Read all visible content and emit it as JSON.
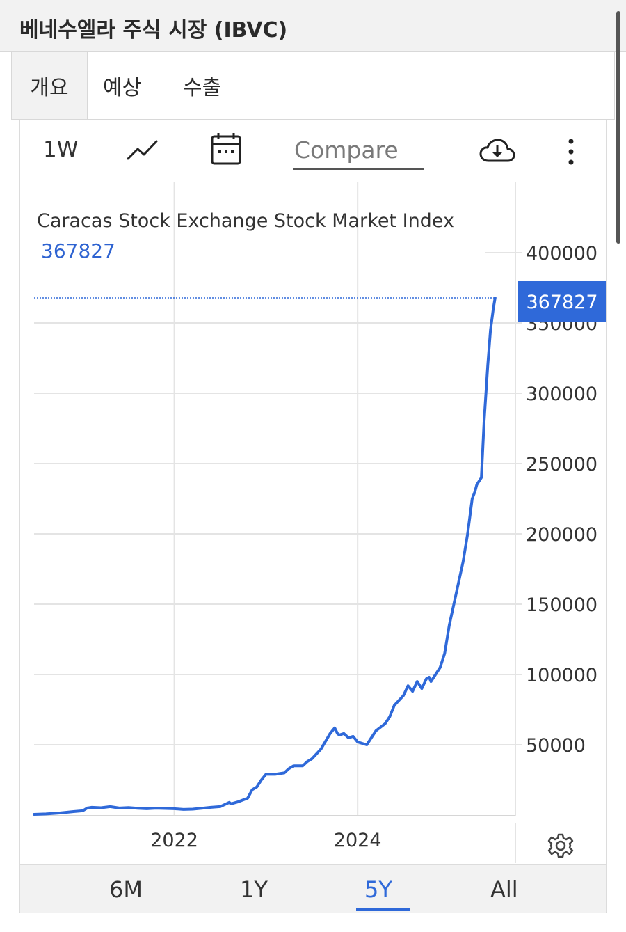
{
  "page": {
    "title": "베네수엘라 주식 시장 (IBVC)",
    "tabs": [
      {
        "label": "개요",
        "active": true
      },
      {
        "label": "예상",
        "active": false
      },
      {
        "label": "수출",
        "active": false
      }
    ]
  },
  "toolbar": {
    "interval": "1W",
    "chart_type_icon": "line-chart-icon",
    "date_icon": "calendar-icon",
    "compare_placeholder": "Compare",
    "download_icon": "cloud-download-icon",
    "more_icon": "more-vertical-icon"
  },
  "ranges": {
    "items": [
      "6M",
      "1Y",
      "5Y",
      "All"
    ],
    "active": "5Y"
  },
  "settings_icon": "gear-icon",
  "colors": {
    "line": "#2f69d9",
    "accent": "#2f69d9",
    "grid": "#e4e4e4"
  },
  "chart_data": {
    "type": "line",
    "title": "Caracas Stock Exchange Stock Market Index",
    "current_value": "367827",
    "current_value_badge": "367827",
    "ylim": [
      0,
      400000
    ],
    "yticks": [
      "400000",
      "350000",
      "300000",
      "250000",
      "200000",
      "150000",
      "100000",
      "50000"
    ],
    "xticks": [
      {
        "label": "2022",
        "x": 2022.0
      },
      {
        "label": "2024",
        "x": 2024.0
      }
    ],
    "xlim": [
      2020.47,
      2025.6
    ],
    "grid": true,
    "series": [
      {
        "x": [
          2020.47,
          2020.6,
          2020.75,
          2020.9,
          2021.0,
          2021.05,
          2021.1,
          2021.2,
          2021.3,
          2021.4,
          2021.5,
          2021.6,
          2021.7,
          2021.8,
          2022.0,
          2022.1,
          2022.2,
          2022.3,
          2022.4,
          2022.5,
          2022.6,
          2022.62,
          2022.7,
          2022.8,
          2022.85,
          2022.9,
          2022.95,
          2023.0,
          2023.1,
          2023.2,
          2023.25,
          2023.3,
          2023.4,
          2023.45,
          2023.5,
          2023.6,
          2023.7,
          2023.75,
          2023.78,
          2023.8,
          2023.85,
          2023.9,
          2023.95,
          2024.0,
          2024.1,
          2024.15,
          2024.2,
          2024.3,
          2024.35,
          2024.4,
          2024.5,
          2024.55,
          2024.6,
          2024.65,
          2024.7,
          2024.75,
          2024.78,
          2024.8,
          2024.85,
          2024.9,
          2024.95,
          2025.0,
          2025.05,
          2025.1,
          2025.15,
          2025.2,
          2025.25,
          2025.28,
          2025.3,
          2025.35,
          2025.38,
          2025.42,
          2025.45,
          2025.48,
          2025.5
        ],
        "y": [
          500,
          800,
          1500,
          2500,
          3000,
          5000,
          5500,
          5200,
          6000,
          5000,
          5300,
          4800,
          4500,
          4900,
          4500,
          4000,
          4200,
          4800,
          5500,
          6000,
          9000,
          8000,
          9500,
          12000,
          18000,
          20000,
          25000,
          29000,
          29000,
          30000,
          33000,
          35000,
          35000,
          38000,
          40000,
          47000,
          58000,
          62000,
          58000,
          57000,
          58000,
          55000,
          56000,
          52000,
          50000,
          55000,
          60000,
          65000,
          70000,
          78000,
          85000,
          92000,
          88000,
          95000,
          90000,
          97000,
          98000,
          95000,
          100000,
          105000,
          115000,
          135000,
          150000,
          165000,
          180000,
          200000,
          225000,
          230000,
          235000,
          240000,
          280000,
          320000,
          345000,
          360000,
          367827
        ]
      }
    ]
  }
}
